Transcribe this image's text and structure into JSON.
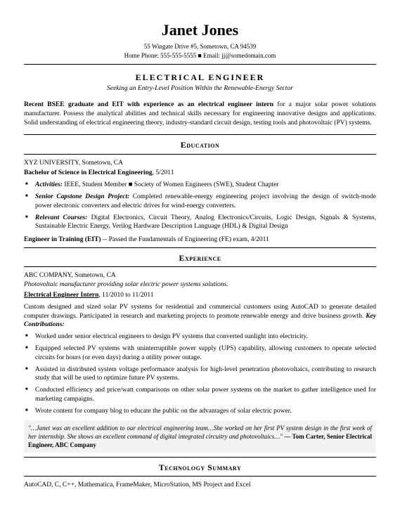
{
  "header": {
    "name": "Janet Jones",
    "address": "55 Wingate Drive #5, Sometown, CA 94539",
    "contact_line": "Home Phone: 555-555-5555 ■ Email: jj@somedomain.com"
  },
  "title": {
    "role": "ELECTRICAL ENGINEER",
    "seeking": "Seeking an Entry-Level Position Within the Renewable-Energy Sector"
  },
  "summary": {
    "bold_lead": "Recent BSEE graduate and EIT with experience as an electrical engineer intern",
    "rest": " for a major solar power solutions manufacturer. Possess the analytical abilities and technical skills necessary for engineering innovative designs and applications. Solid understanding of electrical engineering theory, industry-standard circuit design, testing tools and photovoltaic (PV) systems."
  },
  "education": {
    "heading": "Education",
    "institution": "XYZ UNIVERSITY, Sometown, CA",
    "degree": "Bachelor of Science in Electrical Engineering",
    "degree_date": ", 5/2011",
    "bullets": [
      {
        "label": "Activities:",
        "text": " IEEE, Student Member ■ Society of Women Engineers (SWE), Student Chapter"
      },
      {
        "label": "Senior Capstone Design Project:",
        "text": " Completed renewable-energy engineering project involving the design of switch-mode power electronic converters and electric drives for wind-energy converters."
      },
      {
        "label": "Relevant Courses:",
        "text": " Digital Electronics, Circuit Theory, Analog Electronics/Circuits, Logic Design, Signals & Systems, Sustainable Electric Energy, Verilog Hardware Description Language (HDL) & Digital Design"
      }
    ],
    "eit_bold": "Engineer in Training (EIT)",
    "eit_rest": " -- Passed the Fundamentals of Engineering (FE) exam, 4/2011"
  },
  "experience": {
    "heading": "Experience",
    "company": "ABC COMPANY, Sometown, CA",
    "company_desc": "Photovoltaic manufacturer providing solar electric power systems solutions.",
    "role_title": "Electrical Engineer Intern",
    "role_dates": ", 11/2010 to 11/2011",
    "para": "Custom designed and sized solar PV systems for residential and commercial customers using AutoCAD to generate detailed computer drawings. Participated in research and marketing projects to promote renewable energy and drive business growth. ",
    "para_keylabel": "Key Contributions:",
    "bullets": [
      "Worked under senior electrical engineers to design PV systems that converted sunlight into electricity.",
      "Equipped selected PV systems with uninterruptible power supply (UPS) capability, allowing customers to operate selected circuits for hours (or even days) during a utility power outage.",
      "Assisted in distributed system voltage performance analysis for high-level penetration photovoltaics, contributing to research study that will be used to optimize future PV systems.",
      "Conducted efficiency and price/watt comparisons on other solar power systems on the market to gather intelligence used for marketing campaigns.",
      "Wrote content for company blog to educate the public on the advantages of solar electric power."
    ],
    "quote_text": "\"…Janet was an excellent addition to our electrical engineering team…She worked on her first PV system design in the first week of her internship. She shows an excellent command of digital integrated circuitry and photovoltaics…\" ",
    "quote_attr": "— Tom Carter, Senior Electrical Engineer, ABC Company"
  },
  "tech": {
    "heading": "Technology Summary",
    "text": "AutoCAD, C, C++, Mathematica, FrameMaker, MicroStation, MS Project and Excel"
  }
}
